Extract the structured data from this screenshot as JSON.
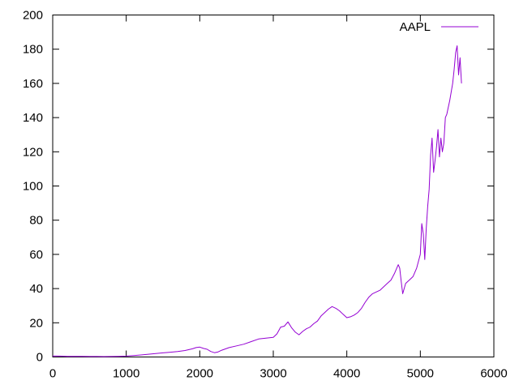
{
  "chart_data": {
    "type": "line",
    "title": "",
    "xlabel": "",
    "ylabel": "",
    "xlim": [
      0,
      6000
    ],
    "ylim": [
      0,
      200
    ],
    "x_ticks": [
      0,
      1000,
      2000,
      3000,
      4000,
      5000,
      6000
    ],
    "y_ticks": [
      0,
      20,
      40,
      60,
      80,
      100,
      120,
      140,
      160,
      180,
      200
    ],
    "grid": false,
    "legend_position": "top-right",
    "series": [
      {
        "name": "AAPL",
        "color": "#9400d3",
        "x": [
          0,
          100,
          200,
          300,
          400,
          500,
          600,
          700,
          800,
          900,
          1000,
          1100,
          1200,
          1300,
          1400,
          1500,
          1600,
          1700,
          1800,
          1900,
          1950,
          2000,
          2050,
          2100,
          2150,
          2200,
          2250,
          2300,
          2400,
          2500,
          2600,
          2700,
          2800,
          2900,
          3000,
          3050,
          3100,
          3150,
          3200,
          3250,
          3300,
          3350,
          3400,
          3450,
          3500,
          3550,
          3600,
          3650,
          3700,
          3750,
          3800,
          3850,
          3900,
          3950,
          4000,
          4050,
          4100,
          4150,
          4200,
          4250,
          4300,
          4350,
          4400,
          4450,
          4500,
          4550,
          4600,
          4650,
          4700,
          4720,
          4740,
          4760,
          4780,
          4800,
          4850,
          4900,
          4950,
          5000,
          5020,
          5040,
          5060,
          5080,
          5100,
          5120,
          5140,
          5160,
          5180,
          5200,
          5220,
          5240,
          5260,
          5280,
          5300,
          5320,
          5340,
          5360,
          5380,
          5400,
          5420,
          5440,
          5460,
          5480,
          5500,
          5520,
          5540,
          5560
        ],
        "y": [
          0.6,
          0.5,
          0.4,
          0.4,
          0.35,
          0.3,
          0.3,
          0.25,
          0.3,
          0.4,
          0.5,
          0.8,
          1.2,
          1.6,
          2.0,
          2.4,
          2.8,
          3.2,
          3.8,
          4.8,
          5.5,
          5.8,
          5.0,
          4.5,
          3.2,
          2.5,
          3.0,
          4.0,
          5.5,
          6.5,
          7.5,
          9.0,
          10.5,
          11.0,
          11.5,
          13.5,
          17.5,
          18.0,
          20.5,
          17.0,
          14.5,
          13.0,
          15.0,
          16.5,
          17.5,
          19.5,
          21.0,
          24.0,
          26.0,
          28.0,
          29.5,
          28.5,
          27.0,
          25.0,
          23.0,
          23.5,
          24.5,
          26.0,
          28.5,
          32.0,
          35.0,
          37.0,
          38.0,
          39.0,
          41.0,
          43.0,
          45.0,
          49.0,
          54.0,
          52.0,
          44.0,
          37.0,
          40.0,
          43.0,
          45.0,
          47.0,
          52.0,
          60.0,
          78.0,
          72.0,
          57.0,
          75.0,
          88.0,
          98.0,
          118.0,
          128.0,
          108.0,
          115.0,
          123.0,
          133.0,
          117.0,
          128.0,
          120.0,
          125.0,
          140.0,
          142.0,
          146.0,
          150.0,
          155.0,
          160.0,
          168.0,
          178.0,
          182.0,
          165.0,
          175.0,
          160.0
        ]
      }
    ]
  }
}
